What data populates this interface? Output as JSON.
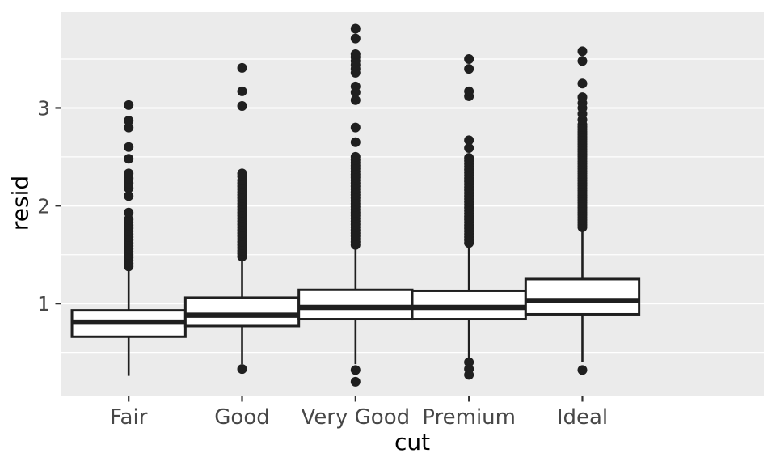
{
  "colors": {
    "background": "#FFFFFF",
    "panel_bg": "#EBEBEB",
    "grid_major": "#FFFFFF",
    "grid_minor": "#FFFFFF",
    "box_fill": "#FFFFFF",
    "stroke": "#1F1F1F",
    "outlier": "#1F1F1F",
    "tick_mark": "#333333",
    "axis_text": "#474747",
    "axis_title": "#000000"
  },
  "chart_data": {
    "type": "boxplot",
    "title": "",
    "xlabel": "cut",
    "ylabel": "resid",
    "categories": [
      "Fair",
      "Good",
      "Very Good",
      "Premium",
      "Ideal"
    ],
    "y_tick_values": [
      1,
      2,
      3
    ],
    "y_tick_labels": [
      "1",
      "2",
      "3"
    ],
    "y_minor_gridlines": [
      0.5,
      1.5,
      2.5,
      3.5
    ],
    "ylim": [
      0.05,
      3.98
    ],
    "grid": "major+minor horizontal, white on grey panel",
    "legend": "none",
    "box_width_units": 0.75,
    "series": [
      {
        "category": "Fair",
        "q1": 0.66,
        "median": 0.81,
        "q3": 0.93,
        "whisker_low": 0.26,
        "whisker_high": 1.34,
        "outliers_low": [],
        "outliers_high": [
          1.38,
          1.41,
          1.44,
          1.47,
          1.5,
          1.53,
          1.56,
          1.59,
          1.62,
          1.65,
          1.68,
          1.71,
          1.74,
          1.77,
          1.8,
          1.83,
          1.86,
          1.93,
          2.1,
          2.18,
          2.23,
          2.28,
          2.33,
          2.48,
          2.6,
          2.8,
          2.87,
          3.03
        ]
      },
      {
        "category": "Good",
        "q1": 0.77,
        "median": 0.88,
        "q3": 1.06,
        "whisker_low": 0.38,
        "whisker_high": 1.47,
        "outliers_low": [
          0.33
        ],
        "outliers_high": [
          1.48,
          1.51,
          1.54,
          1.57,
          1.6,
          1.63,
          1.66,
          1.69,
          1.72,
          1.75,
          1.78,
          1.81,
          1.84,
          1.87,
          1.9,
          1.93,
          1.96,
          1.99,
          2.02,
          2.05,
          2.08,
          2.11,
          2.14,
          2.17,
          2.2,
          2.23,
          2.26,
          2.3,
          2.33,
          3.02,
          3.17,
          3.41
        ]
      },
      {
        "category": "Very Good",
        "q1": 0.84,
        "median": 0.96,
        "q3": 1.14,
        "whisker_low": 0.38,
        "whisker_high": 1.58,
        "outliers_low": [
          0.32,
          0.2
        ],
        "outliers_high": [
          1.6,
          1.63,
          1.66,
          1.69,
          1.72,
          1.75,
          1.78,
          1.81,
          1.84,
          1.87,
          1.9,
          1.93,
          1.96,
          1.99,
          2.02,
          2.05,
          2.08,
          2.11,
          2.14,
          2.17,
          2.2,
          2.23,
          2.26,
          2.29,
          2.32,
          2.35,
          2.38,
          2.41,
          2.44,
          2.47,
          2.5,
          2.65,
          2.8,
          3.08,
          3.16,
          3.22,
          3.36,
          3.4,
          3.44,
          3.48,
          3.52,
          3.55,
          3.71,
          3.81
        ]
      },
      {
        "category": "Premium",
        "q1": 0.84,
        "median": 0.96,
        "q3": 1.13,
        "whisker_low": 0.44,
        "whisker_high": 1.58,
        "outliers_low": [
          0.4,
          0.33,
          0.27
        ],
        "outliers_high": [
          1.62,
          1.65,
          1.68,
          1.71,
          1.74,
          1.77,
          1.8,
          1.83,
          1.86,
          1.89,
          1.92,
          1.95,
          1.98,
          2.01,
          2.04,
          2.07,
          2.1,
          2.13,
          2.16,
          2.19,
          2.22,
          2.25,
          2.28,
          2.31,
          2.34,
          2.37,
          2.4,
          2.43,
          2.46,
          2.49,
          2.59,
          2.67,
          3.12,
          3.17,
          3.4,
          3.5
        ]
      },
      {
        "category": "Ideal",
        "q1": 0.89,
        "median": 1.03,
        "q3": 1.25,
        "whisker_low": 0.4,
        "whisker_high": 1.76,
        "outliers_low": [
          0.32
        ],
        "outliers_high": [
          1.78,
          1.805,
          1.83,
          1.855,
          1.88,
          1.905,
          1.93,
          1.955,
          1.98,
          2.005,
          2.03,
          2.055,
          2.08,
          2.105,
          2.13,
          2.155,
          2.18,
          2.205,
          2.23,
          2.255,
          2.28,
          2.305,
          2.33,
          2.355,
          2.38,
          2.405,
          2.43,
          2.455,
          2.48,
          2.505,
          2.53,
          2.555,
          2.58,
          2.605,
          2.63,
          2.655,
          2.68,
          2.705,
          2.73,
          2.755,
          2.78,
          2.805,
          2.83,
          2.88,
          2.94,
          3.0,
          3.05,
          3.11,
          3.25,
          3.48,
          3.58
        ]
      }
    ]
  }
}
